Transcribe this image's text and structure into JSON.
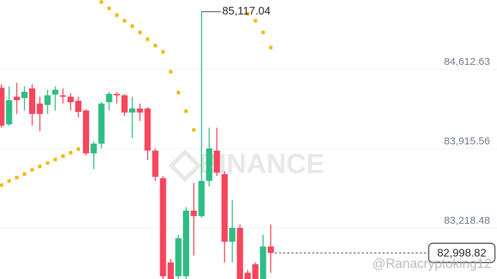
{
  "chart_data": {
    "type": "candlestick",
    "up_color": "#2ebd85",
    "down_color": "#f6465d",
    "open": [
      84449,
      84128,
      84370,
      84358,
      84443,
      84310,
      84298,
      84389,
      84382,
      84370,
      84334,
      84249,
      83873,
      83958,
      84322,
      84395,
      84382,
      84231,
      84267,
      84267,
      83897,
      83655,
      82915,
      82794,
      82794,
      83370,
      83322,
      83631,
      83897,
      83691,
      83097,
      83219,
      82825,
      82900,
      82760,
      83055
    ],
    "high": [
      84479,
      84461,
      84492,
      84461,
      84479,
      84370,
      84431,
      84461,
      84443,
      84401,
      84370,
      84261,
      83976,
      84322,
      84413,
      84413,
      84395,
      84370,
      84310,
      84279,
      83916,
      83673,
      82946,
      83158,
      83400,
      83613,
      85117.04,
      84098,
      84098,
      83716,
      83461,
      83249,
      82850,
      82915,
      83158,
      83249
    ],
    "low": [
      84098,
      84116,
      84219,
      84249,
      84116,
      84067,
      84219,
      84249,
      84310,
      84249,
      84188,
      83855,
      83734,
      83916,
      84249,
      84310,
      84201,
      84007,
      84158,
      83813,
      83631,
      82740,
      82740,
      82740,
      82740,
      82976,
      83309,
      83582,
      83673,
      82915,
      82915,
      82740,
      82740,
      82740,
      82740,
      82825
    ],
    "close": [
      84116,
      84340,
      84340,
      84413,
      84219,
      84219,
      84382,
      84431,
      84370,
      84322,
      84237,
      83873,
      83958,
      84310,
      84395,
      84382,
      84231,
      84267,
      84231,
      83897,
      83667,
      82794,
      82760,
      83128,
      83370,
      83322,
      83631,
      83916,
      83703,
      83097,
      83219,
      82760,
      82760,
      82760,
      83055,
      82998.82
    ],
    "sar": {
      "color": "#f0b90b",
      "values": [
        83594,
        83631,
        83661,
        83691,
        83728,
        83758,
        83788,
        83819,
        83849,
        83879,
        83910,
        null,
        null,
        85201,
        85146,
        85086,
        85037,
        84989,
        84934,
        84874,
        84819,
        84764,
        84589,
        84407,
        84243,
        84079,
        null,
        null,
        null,
        null,
        null,
        null,
        85098,
        85037,
        84934,
        84801
      ]
    },
    "ylim": [
      82770,
      85219
    ],
    "yticks": [
      {
        "value": 83218.48,
        "label": "83,218.48"
      },
      {
        "value": 83915.56,
        "label": "83,915.56"
      },
      {
        "value": 84612.63,
        "label": "84,612.63"
      }
    ],
    "grid": true,
    "high_marker": {
      "value": 85117.04,
      "label": "85,117.04"
    },
    "last_price": {
      "value": 82998.82,
      "label": "82,998.82"
    },
    "watermark": "BINANCE",
    "credit": "@Ranacryptoking12"
  }
}
